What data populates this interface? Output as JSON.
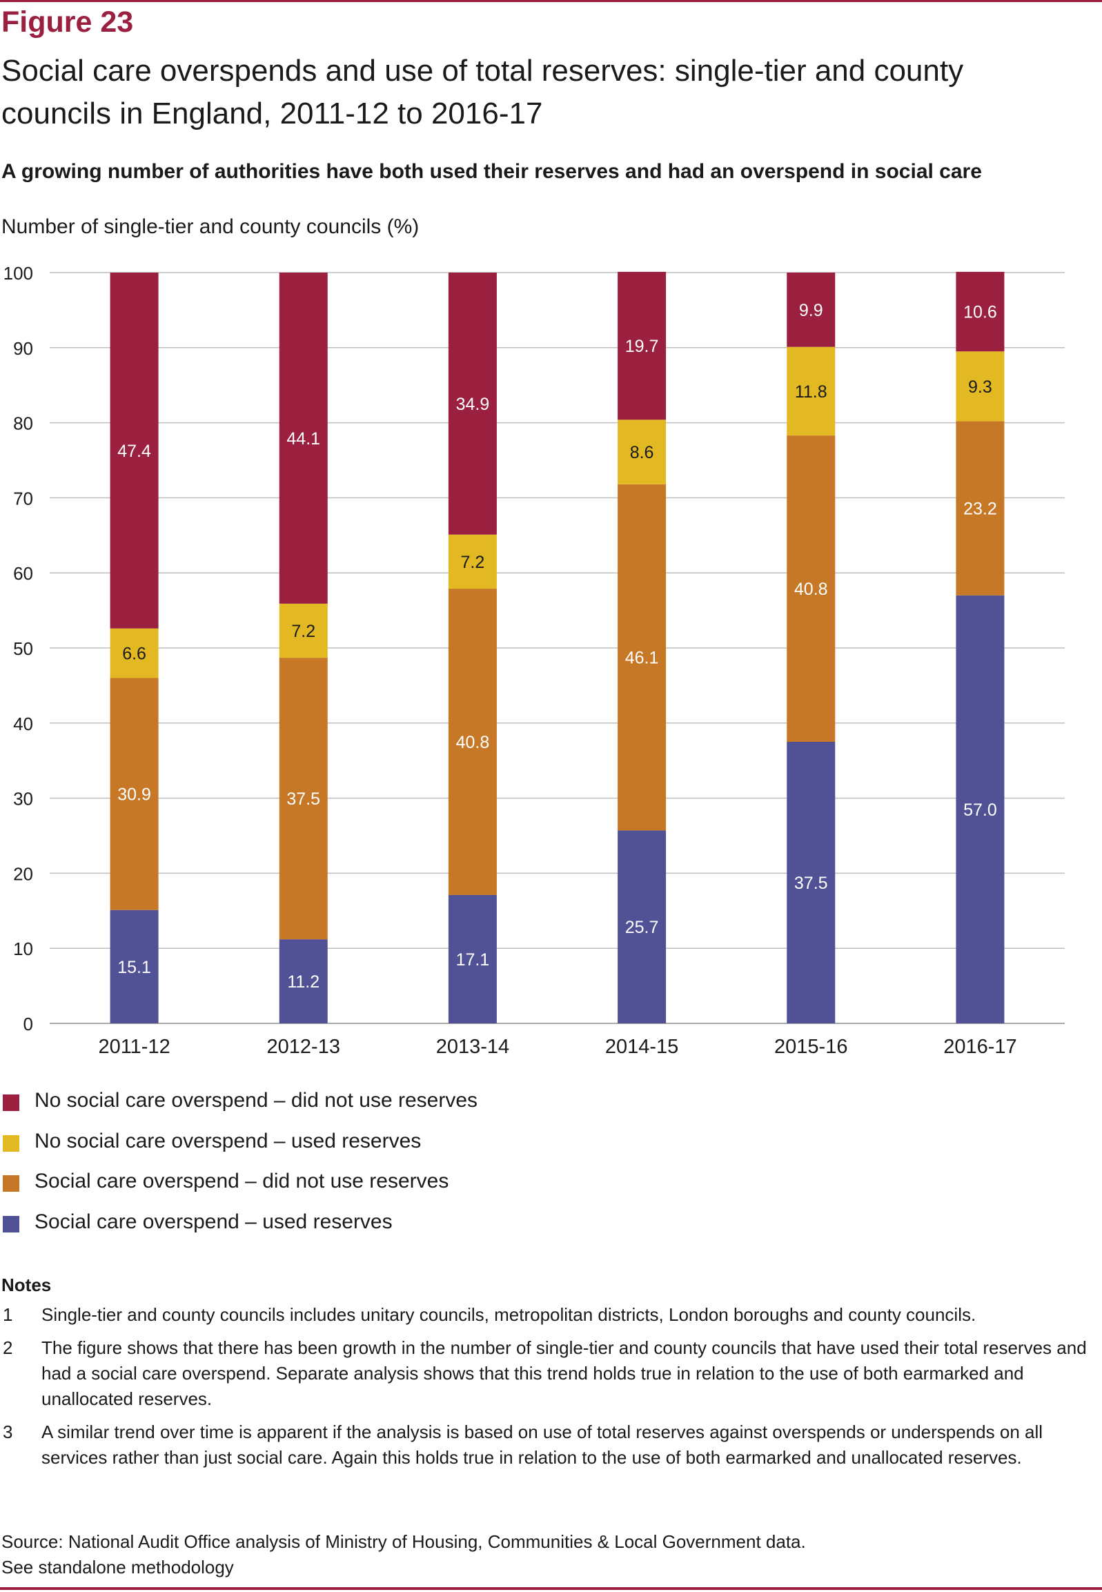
{
  "figure_label": "Figure 23",
  "title": "Social care overspends and use of total reserves: single-tier and county councils in England, 2011-12 to 2016-17",
  "subtitle": "A growing number of authorities have both used their reserves and had an overspend in social care",
  "colors": {
    "accent": "#9b2040",
    "no_overspend_no_reserves": "#9b2040",
    "no_overspend_used_reserves": "#e2b923",
    "overspend_no_reserves": "#c77826",
    "overspend_used_reserves": "#515296",
    "gridline": "#bfbfbf"
  },
  "chart_data": {
    "type": "bar",
    "stacked": true,
    "categories": [
      "2011-12",
      "2012-13",
      "2013-14",
      "2014-15",
      "2015-16",
      "2016-17"
    ],
    "series": [
      {
        "name": "Social care overspend – used reserves",
        "color": "#515296",
        "label_color": "#ffffff",
        "values": [
          15.1,
          11.2,
          17.1,
          25.7,
          37.5,
          57.0
        ]
      },
      {
        "name": "Social care overspend – did not use reserves",
        "color": "#c77826",
        "label_color": "#ffffff",
        "values": [
          30.9,
          37.5,
          40.8,
          46.1,
          40.8,
          23.2
        ]
      },
      {
        "name": "No social care overspend – used reserves",
        "color": "#e2b923",
        "label_color": "#1a1a1a",
        "values": [
          6.6,
          7.2,
          7.2,
          8.6,
          11.8,
          9.3
        ]
      },
      {
        "name": "No social care overspend – did not use reserves",
        "color": "#9b2040",
        "label_color": "#ffffff",
        "values": [
          47.4,
          44.1,
          34.9,
          19.7,
          9.9,
          10.6
        ]
      }
    ],
    "title": "",
    "xlabel": "",
    "ylabel": "Number of single-tier and county councils (%)",
    "ylim": [
      0,
      100
    ],
    "yticks": [
      "0",
      "10",
      "20",
      "30",
      "40",
      "50",
      "60",
      "70",
      "80",
      "90",
      "100"
    ],
    "grid": true,
    "legend_position": "bottom"
  },
  "legend": [
    {
      "label": "No social care overspend – did not use reserves",
      "color": "#9b2040"
    },
    {
      "label": "No social care overspend – used reserves",
      "color": "#e2b923"
    },
    {
      "label": "Social care overspend – did not use reserves",
      "color": "#c77826"
    },
    {
      "label": "Social care overspend – used reserves",
      "color": "#515296"
    }
  ],
  "notes": {
    "heading": "Notes",
    "items": [
      {
        "num": "1",
        "text": "Single-tier and county councils includes unitary councils, metropolitan districts, London boroughs and county councils."
      },
      {
        "num": "2",
        "text": "The figure shows that there has been growth in the number of single-tier and county councils that have used their total reserves and had a social care overspend. Separate analysis shows that this trend holds true in relation to the use of both earmarked and unallocated reserves."
      },
      {
        "num": "3",
        "text": "A similar trend over time is apparent if the analysis is based on use of total reserves against overspends or underspends on all services rather than just social care. Again this holds true in relation to the use of both earmarked and unallocated reserves."
      }
    ]
  },
  "source": {
    "line1": "Source: National Audit Office analysis of Ministry of Housing, Communities & Local Government data.",
    "line2": "See standalone methodology"
  }
}
